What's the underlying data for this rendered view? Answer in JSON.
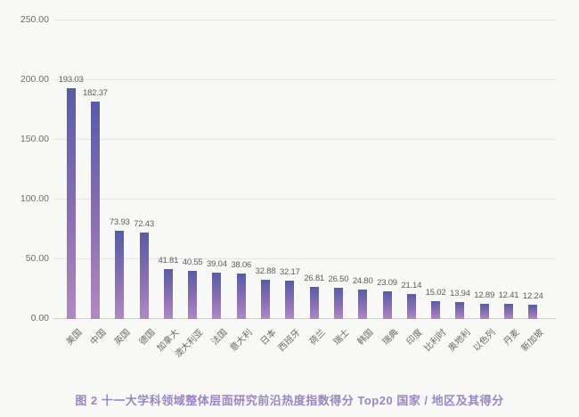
{
  "chart_data": {
    "type": "bar",
    "title": "图 2 十一大学科领域整体层面研究前沿热度指数得分 Top20 国家 / 地区及其得分",
    "xlabel": "",
    "ylabel": "",
    "categories": [
      "美国",
      "中国",
      "英国",
      "德国",
      "加拿大",
      "澳大利亚",
      "法国",
      "意大利",
      "日本",
      "西班牙",
      "荷兰",
      "瑞士",
      "韩国",
      "瑞典",
      "印度",
      "比利时",
      "奥地利",
      "以色列",
      "丹麦",
      "新加坡"
    ],
    "values": [
      193.03,
      182.37,
      73.93,
      72.43,
      41.81,
      40.55,
      39.04,
      38.06,
      32.88,
      32.17,
      26.81,
      26.5,
      24.8,
      23.09,
      21.14,
      15.02,
      13.94,
      12.89,
      12.41,
      12.24
    ],
    "value_labels": [
      "193.03",
      "182.37",
      "73.93",
      "72.43",
      "41.81",
      "40.55",
      "39.04",
      "38.06",
      "32.88",
      "32.17",
      "26.81",
      "26.50",
      "24.80",
      "23.09",
      "21.14",
      "15.02",
      "13.94",
      "12.89",
      "12.41",
      "12.24"
    ],
    "ylim": [
      0,
      250
    ],
    "yticks": [
      "0.00",
      "50.00",
      "100.00",
      "150.00",
      "200.00",
      "250.00"
    ],
    "grid": true,
    "legend": false,
    "colors": {
      "background": "#f8f8f6",
      "bar_gradient_top": "#575ca8",
      "bar_gradient_bottom": "#b288c2",
      "gridline": "#e4e4e1",
      "axis_line": "#cfcfcc",
      "tick_text": "#6f6e6a",
      "value_text": "#5f5e5a",
      "caption_text": "#9b86c7"
    }
  }
}
